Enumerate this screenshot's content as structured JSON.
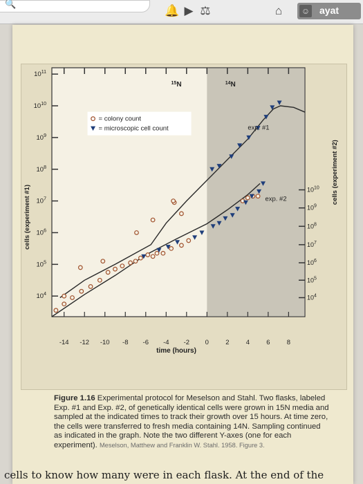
{
  "toolbar": {
    "icons": [
      "search-icon",
      "bell-icon",
      "video-icon",
      "book-icon",
      "home-icon",
      "person-icon"
    ],
    "username": "ayat"
  },
  "figure": {
    "label": "Figure 1.16",
    "caption": "Experimental protocol for Meselson and Stahl. Two flasks, labeled Exp. #1 and Exp. #2, of genetically identical cells were grown in 15N media and sampled at the indicated times to track their growth over 15 hours. At time zero, the cells were transferred to fresh media containing 14N. Sampling continued as indicated in the graph. Note the two different Y-axes (one for each experiment).",
    "credit": "Meselson, Matthew and Franklin W. Stahl. 1958. Figure 3."
  },
  "bottom_text": "cells to know how many were in each flask. At the end of the",
  "chart_data": {
    "type": "scatter",
    "xlabel": "time (hours)",
    "ylabel_left": "cells (experiment #1)",
    "ylabel_right": "cells (experiment #2)",
    "x_ticks": [
      "-14",
      "-12",
      "-10",
      "-8",
      "-6",
      "-4",
      "-2",
      "0",
      "2",
      "4",
      "6",
      "8"
    ],
    "x_tick_values": [
      -14,
      -12,
      -10,
      -8,
      -6,
      -4,
      -2,
      0,
      2,
      4,
      6,
      8
    ],
    "xlim": [
      -15.2,
      9.6
    ],
    "left_axis": {
      "scale": "log",
      "ylim_exp": [
        3.35,
        11.2
      ],
      "tick_labels": [
        "10^4",
        "10^5",
        "10^6",
        "10^7",
        "10^8",
        "10^9",
        "10^10",
        "10^11"
      ],
      "tick_exps": [
        4,
        5,
        6,
        7,
        8,
        9,
        10,
        11
      ]
    },
    "right_axis": {
      "scale": "log",
      "ylim_exp": [
        3.35,
        11.2
      ],
      "tick_labels": [
        "10^4",
        "10^5",
        "10^6",
        "10^7",
        "10^8",
        "10^9",
        "10^10"
      ],
      "tick_exps": [
        3.95,
        4.5,
        5.05,
        5.62,
        6.2,
        6.78,
        7.35
      ],
      "note": "values approximate to printed ticks"
    },
    "shaded_region": {
      "from_x": 0,
      "to_x": 9.6,
      "label_15N": "15N",
      "label_14N": "14N"
    },
    "legend": {
      "placement": "upper-left",
      "items": [
        {
          "marker": "circle",
          "label": "= colony count"
        },
        {
          "marker": "triangle-down",
          "label": "= microscopic cell count"
        }
      ]
    },
    "annotations": [
      "exp. #1",
      "exp. #2"
    ],
    "series": [
      {
        "name": "exp. #1",
        "curve": [
          [
            -14.4,
            3.95
          ],
          [
            -12.0,
            4.5
          ],
          [
            -9.0,
            5.0
          ],
          [
            -5.5,
            5.62
          ],
          [
            -4.0,
            6.3
          ],
          [
            -2.0,
            7.0
          ],
          [
            0.0,
            7.65
          ],
          [
            2.0,
            8.3
          ],
          [
            4.0,
            8.95
          ],
          [
            5.5,
            9.55
          ],
          [
            6.5,
            9.9
          ],
          [
            7.2,
            10.0
          ],
          [
            8.5,
            9.95
          ],
          [
            9.6,
            9.8
          ]
        ],
        "colony": [
          [
            -14.0,
            4.0
          ],
          [
            -12.4,
            4.9
          ],
          [
            -10.2,
            5.1
          ],
          [
            -6.9,
            6.0
          ],
          [
            -5.3,
            6.4
          ],
          [
            -3.2,
            6.95
          ],
          [
            -2.5,
            6.6
          ],
          [
            -3.3,
            7.0
          ]
        ],
        "microscopic": [
          [
            0.5,
            8.0
          ],
          [
            1.2,
            8.1
          ],
          [
            2.4,
            8.4
          ],
          [
            3.2,
            8.75
          ],
          [
            4.1,
            9.0
          ],
          [
            5.0,
            9.3
          ],
          [
            5.8,
            9.65
          ],
          [
            6.4,
            9.95
          ],
          [
            7.1,
            10.1
          ]
        ]
      },
      {
        "name": "exp. #2",
        "curve": [
          [
            -15.2,
            3.35
          ],
          [
            -12.0,
            4.05
          ],
          [
            -9.0,
            4.65
          ],
          [
            -6.0,
            5.3
          ],
          [
            -3.0,
            5.8
          ],
          [
            0.0,
            6.28
          ],
          [
            2.0,
            6.72
          ],
          [
            4.0,
            7.2
          ],
          [
            5.2,
            7.55
          ]
        ],
        "colony": [
          [
            -14.8,
            3.55
          ],
          [
            -14.0,
            3.75
          ],
          [
            -13.2,
            3.95
          ],
          [
            -12.3,
            4.15
          ],
          [
            -11.4,
            4.3
          ],
          [
            -10.5,
            4.5
          ],
          [
            -9.7,
            4.75
          ],
          [
            -9.0,
            4.85
          ],
          [
            -8.3,
            4.95
          ],
          [
            -7.5,
            5.05
          ],
          [
            -7.0,
            5.1
          ],
          [
            -6.5,
            5.2
          ],
          [
            -5.8,
            5.3
          ],
          [
            -5.3,
            5.25
          ],
          [
            -4.9,
            5.35
          ],
          [
            -4.3,
            5.35
          ],
          [
            -3.5,
            5.5
          ],
          [
            -2.5,
            5.6
          ],
          [
            -1.8,
            5.75
          ],
          [
            3.5,
            7.0
          ],
          [
            4.0,
            7.1
          ],
          [
            4.5,
            7.15
          ],
          [
            5.0,
            7.15
          ]
        ],
        "microscopic": [
          [
            -6.2,
            5.25
          ],
          [
            -4.7,
            5.45
          ],
          [
            -3.8,
            5.55
          ],
          [
            -2.9,
            5.7
          ],
          [
            -1.2,
            5.85
          ],
          [
            -0.5,
            6.0
          ],
          [
            0.6,
            6.2
          ],
          [
            1.2,
            6.3
          ],
          [
            1.8,
            6.45
          ],
          [
            2.5,
            6.55
          ],
          [
            3.0,
            6.75
          ],
          [
            3.8,
            6.95
          ],
          [
            4.4,
            7.15
          ],
          [
            5.1,
            7.3
          ],
          [
            5.5,
            7.55
          ]
        ]
      }
    ]
  }
}
